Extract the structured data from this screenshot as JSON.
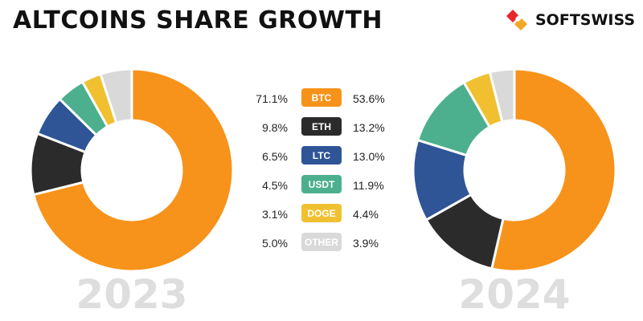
{
  "header": {
    "title": "ALTCOINS SHARE GROWTH",
    "brand": "SOFTSWISS",
    "brand_colors": [
      "#e8262c",
      "#f5a623"
    ]
  },
  "chart_data": {
    "type": "pie",
    "categories": [
      "BTC",
      "ETH",
      "LTC",
      "USDT",
      "DOGE",
      "OTHER"
    ],
    "colors": [
      "#f7931a",
      "#2b2b2b",
      "#2f5597",
      "#4caf8e",
      "#f0c030",
      "#d9d9d9"
    ],
    "series": [
      {
        "name": "2023",
        "values": [
          71.1,
          9.8,
          6.5,
          4.5,
          3.1,
          5.0
        ],
        "labels": [
          "71.1%",
          "9.8%",
          "6.5%",
          "4.5%",
          "3.1%",
          "5.0%"
        ]
      },
      {
        "name": "2024",
        "values": [
          53.6,
          13.2,
          13.0,
          11.9,
          4.4,
          3.9
        ],
        "labels": [
          "53.6%",
          "13.2%",
          "13.0%",
          "11.9%",
          "4.4%",
          "3.9%"
        ]
      }
    ],
    "legend": "center"
  }
}
